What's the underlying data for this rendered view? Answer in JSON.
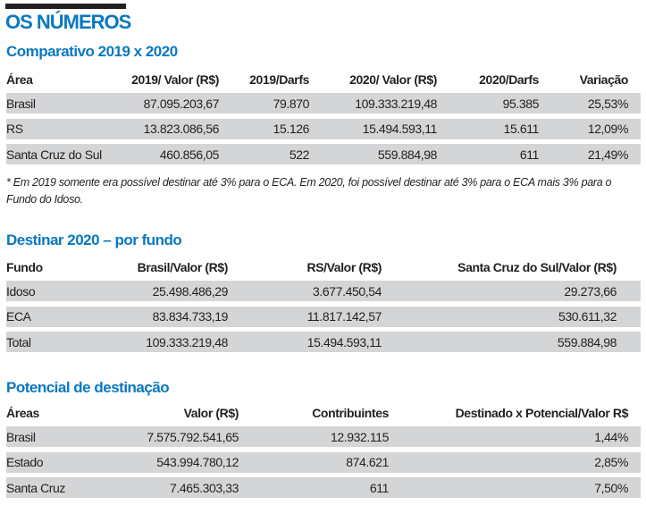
{
  "title": "OS NÚMEROS",
  "comparativo": {
    "title": "Comparativo 2019 x 2020",
    "headers": [
      "Área",
      "2019/ Valor (R$)",
      "2019/Darfs",
      "2020/ Valor (R$)",
      "2020/Darfs",
      "Variação"
    ],
    "rows": [
      [
        "Brasil",
        "87.095.203,67",
        "79.870",
        "109.333.219,48",
        "95.385",
        "25,53%"
      ],
      [
        "RS",
        "13.823.086,56",
        "15.126",
        "15.494.593,11",
        "15.611",
        "12,09%"
      ],
      [
        "Santa Cruz do Sul",
        "460.856,05",
        "522",
        "559.884,98",
        "611",
        "21,49%"
      ]
    ],
    "note": "* Em 2019 somente era possível destinar até 3% para o ECA. Em 2020, foi possível destinar até 3% para o ECA mais 3% para o Fundo do Idoso."
  },
  "destinar": {
    "title": "Destinar 2020 – por fundo",
    "headers": [
      "Fundo",
      "Brasil/Valor (R$)",
      "RS/Valor (R$)",
      "Santa Cruz do Sul/Valor (R$)"
    ],
    "rows": [
      [
        "Idoso",
        "25.498.486,29",
        "3.677.450,54",
        "29.273,66"
      ],
      [
        "ECA",
        "83.834.733,19",
        "11.817.142,57",
        "530.611,32"
      ],
      [
        "Total",
        "109.333.219,48",
        "15.494.593,11",
        "559.884,98"
      ]
    ]
  },
  "potencial": {
    "title": "Potencial de destinação",
    "headers": [
      "Áreas",
      "Valor (R$)",
      "Contribuintes",
      "Destinado x Potencial/Valor R$"
    ],
    "rows": [
      [
        "Brasil",
        "7.575.792.541,65",
        "12.932.115",
        "1,44%"
      ],
      [
        "Estado",
        "543.994.780,12",
        "874.621",
        "2,85%"
      ],
      [
        "Santa Cruz",
        "7.465.303,33",
        "611",
        "7,50%"
      ]
    ]
  }
}
